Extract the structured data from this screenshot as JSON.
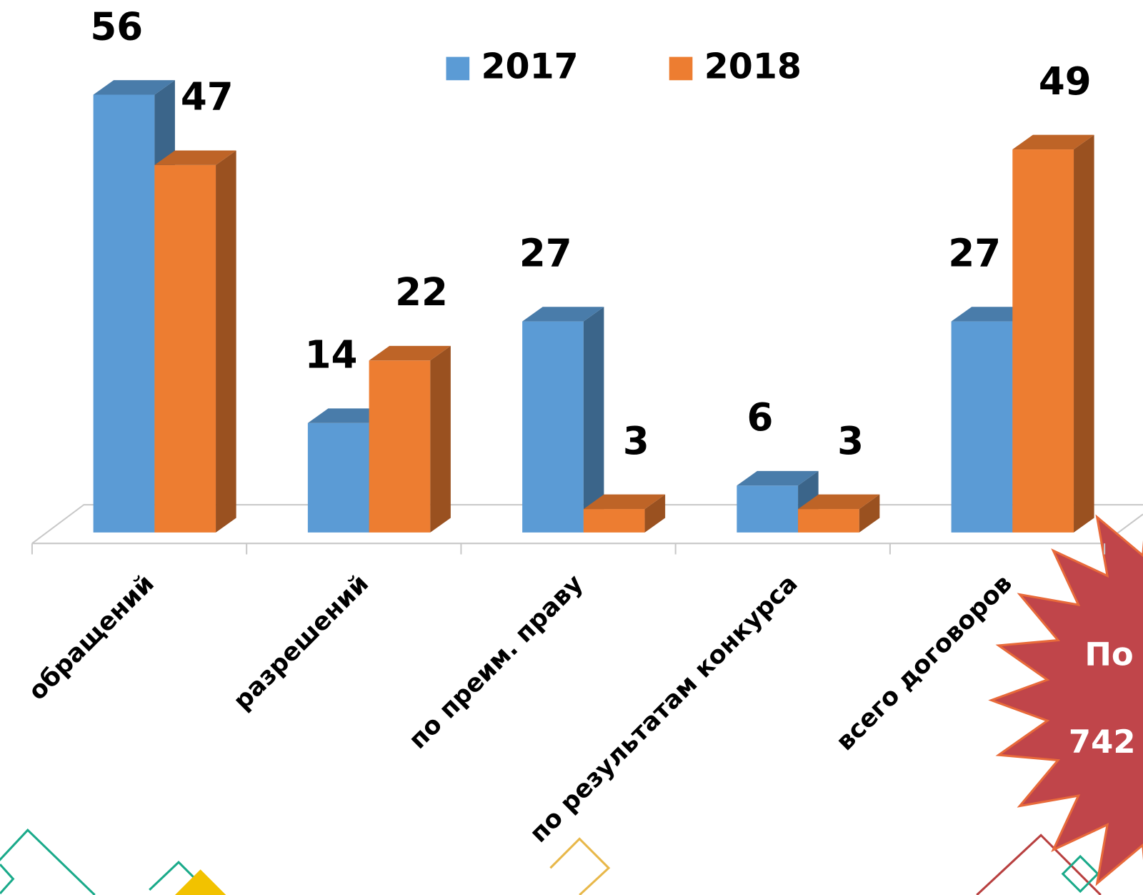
{
  "chart_data": {
    "type": "bar3d",
    "categories": [
      "обращений",
      "разрешений",
      "по преим. праву",
      "по результатам конкурса",
      "всего договоров"
    ],
    "series": [
      {
        "name": "2017",
        "color": "#5b9bd5",
        "values": [
          56,
          14,
          27,
          6,
          27
        ]
      },
      {
        "name": "2018",
        "color": "#ed7d31",
        "values": [
          47,
          22,
          3,
          3,
          49
        ]
      }
    ],
    "ylim": [
      0,
      60
    ],
    "legend": "top"
  },
  "badge": {
    "lines": [
      "По",
      "742"
    ]
  }
}
